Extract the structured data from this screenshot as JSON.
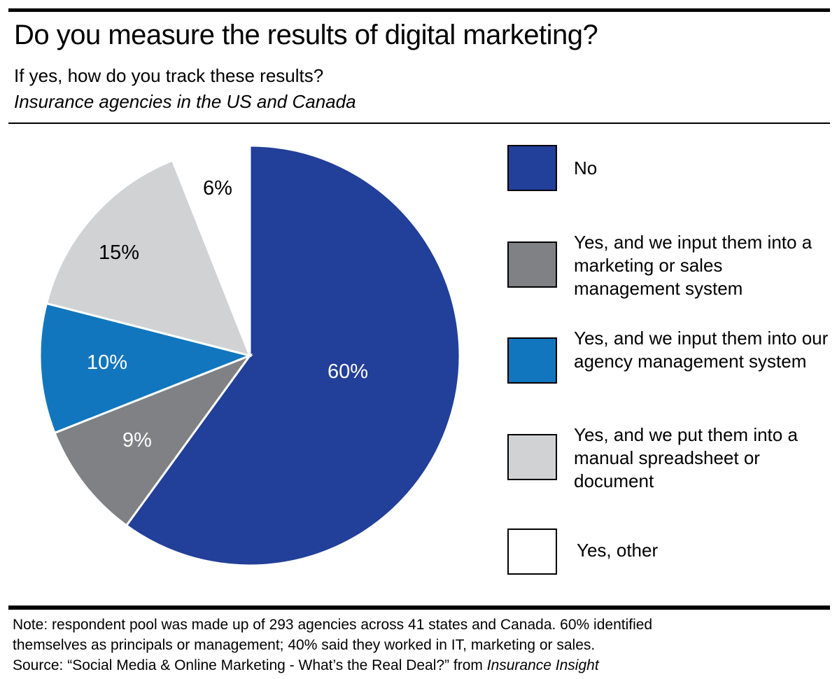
{
  "header": {
    "title": "Do you measure the results of digital marketing?",
    "subtitle": "If yes, how do you track these results?",
    "subtitle2": "Insurance agencies in the US and Canada"
  },
  "chart_data": {
    "type": "pie",
    "title": "Do you measure the results of digital marketing?",
    "categories": [
      "No",
      "Yes, and we input them into a marketing or sales management system",
      "Yes, and we input them into our agency management system",
      "Yes, and we put them into a manual spreadsheet or document",
      "Yes, other"
    ],
    "values": [
      60,
      9,
      10,
      15,
      6
    ],
    "data_labels": [
      "60%",
      "9%",
      "10%",
      "15%",
      "6%"
    ],
    "colors": [
      "#223f99",
      "#808184",
      "#1176be",
      "#d1d2d4",
      "#ffffff"
    ],
    "label_colors": [
      "#ffffff",
      "#ffffff",
      "#ffffff",
      "#000000",
      "#000000"
    ],
    "start_angle": "12 o'clock",
    "direction": "clockwise",
    "legend_placement": "right"
  },
  "footer": {
    "note_line1": "Note: respondent pool was made up of 293 agencies across 41 states and Canada. 60% identified",
    "note_line2": "themselves as principals or management; 40% said they worked in IT, marketing or sales.",
    "source_prefix": "Source: “Social Media & Online Marketing - What’s the Real Deal?” from ",
    "source_publication": "Insurance Insight"
  }
}
